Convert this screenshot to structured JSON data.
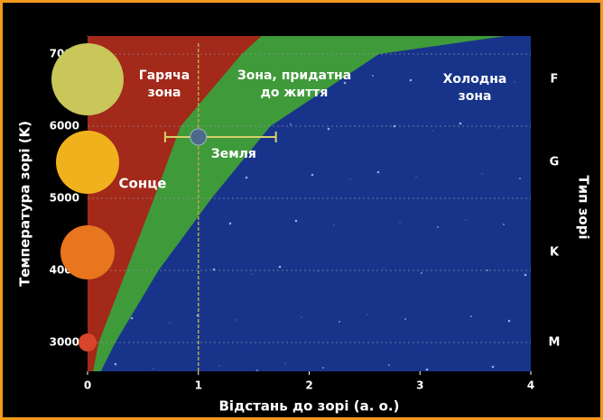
{
  "chart_data": {
    "type": "zones",
    "xlabel": "Відстань до зорі (а. о.)",
    "ylabel": "Температура зорі (K)",
    "y2label": "Тип зорі",
    "xlim": [
      0,
      4
    ],
    "xticks": [
      0,
      1,
      2,
      3,
      4
    ],
    "ylim": [
      2600,
      7250
    ],
    "yticks": [
      3000,
      4000,
      5000,
      6000,
      7000
    ],
    "y2ticks": [
      {
        "value": 6650,
        "label": "F"
      },
      {
        "value": 5500,
        "label": "G"
      },
      {
        "value": 4250,
        "label": "K"
      },
      {
        "value": 3000,
        "label": "M"
      }
    ],
    "grid": true,
    "boundary_temperatures": [
      2600,
      3000,
      4000,
      5000,
      6000,
      7000,
      7250
    ],
    "inner_boundary": [
      0.05,
      0.1,
      0.35,
      0.6,
      0.84,
      1.39,
      1.57
    ],
    "outer_boundary": [
      0.12,
      0.25,
      0.64,
      1.12,
      1.65,
      2.63,
      3.77
    ],
    "zones": [
      {
        "name": [
          "Гаряча",
          "зона"
        ],
        "color": "#a3291a"
      },
      {
        "name": [
          "Зона, придатна",
          "до життя"
        ],
        "color": "#3f9a3a"
      },
      {
        "name": [
          "Холодна",
          "зона"
        ],
        "color": "#17348a"
      }
    ],
    "earth": {
      "label": "Земля",
      "x": 1,
      "y": 5850,
      "x_low": 0.7,
      "x_high": 1.7
    },
    "sun_label": "Сонце"
  }
}
